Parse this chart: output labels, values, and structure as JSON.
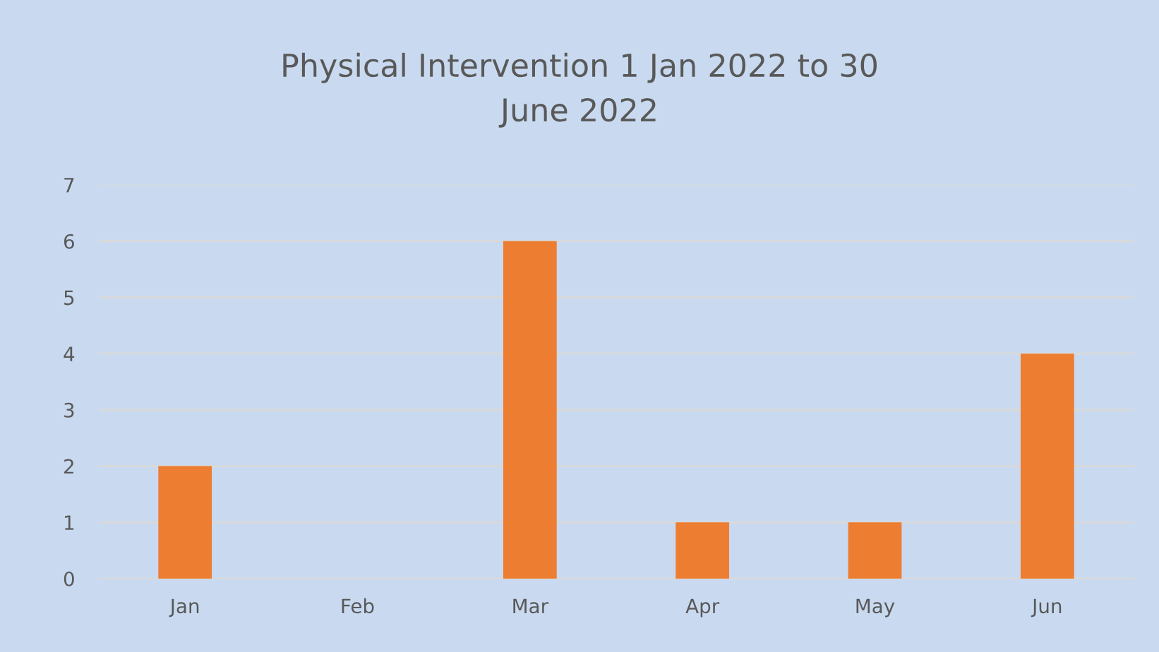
{
  "chart_data": {
    "type": "bar",
    "title": "Physical Intervention 1 Jan 2022 to 30\nJune 2022",
    "categories": [
      "Jan",
      "Feb",
      "Mar",
      "Apr",
      "May",
      "Jun"
    ],
    "values": [
      2,
      0,
      6,
      1,
      1,
      4
    ],
    "color": "#ed7d31",
    "ylim": [
      0,
      7
    ],
    "yticks": [
      0,
      1,
      2,
      3,
      4,
      5,
      6,
      7
    ],
    "grid": "y"
  }
}
